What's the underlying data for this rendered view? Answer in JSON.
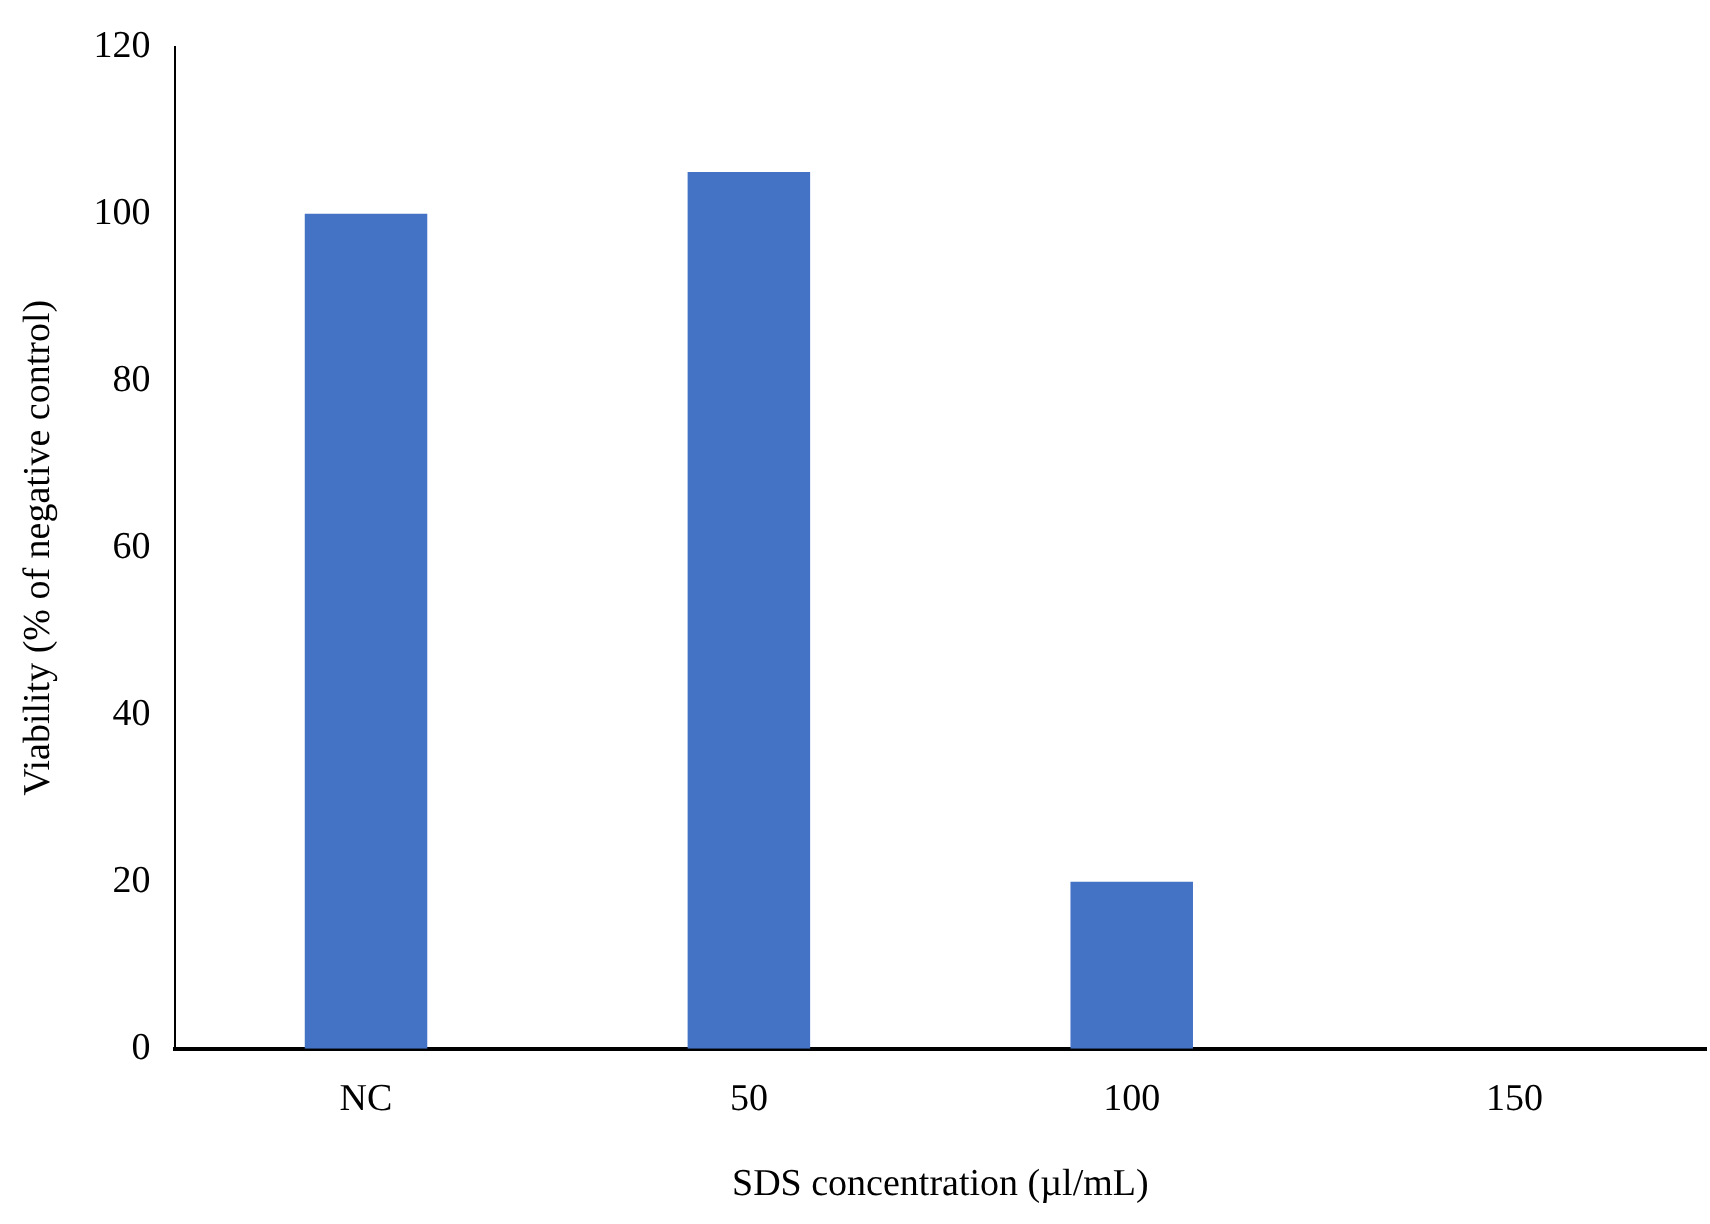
{
  "chart_data": {
    "type": "bar",
    "xlabel": "SDS concentration (µl/mL)",
    "ylabel": "Viability (% of negative control)",
    "categories": [
      "NC",
      "50",
      "100",
      "150"
    ],
    "values": [
      100,
      105,
      20,
      0
    ],
    "color": "#4472c4",
    "ylim": [
      0,
      120
    ],
    "yticks": [
      0,
      20,
      40,
      60,
      80,
      100,
      120
    ],
    "grid": false,
    "legend": false
  }
}
